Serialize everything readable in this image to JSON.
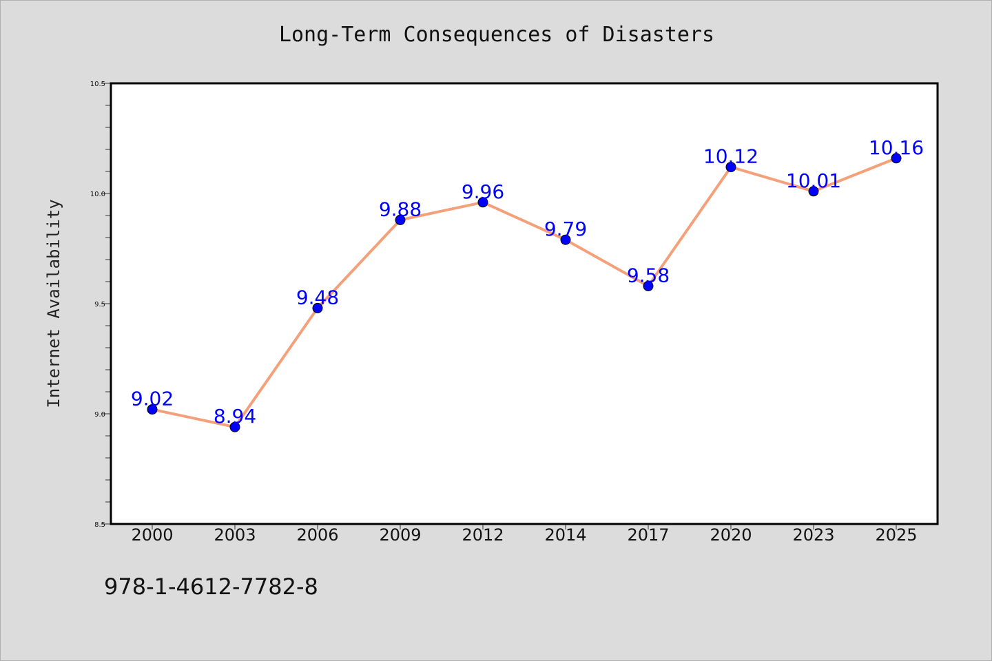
{
  "chart_data": {
    "type": "line",
    "title": "Long-Term Consequences of Disasters",
    "xlabel": "",
    "ylabel": "Internet Availability",
    "categories": [
      "2000",
      "2003",
      "2006",
      "2009",
      "2012",
      "2014",
      "2017",
      "2020",
      "2023",
      "2025"
    ],
    "series": [
      {
        "values": [
          9.02,
          8.94,
          9.48,
          9.88,
          9.96,
          9.79,
          9.58,
          10.12,
          10.01,
          10.16
        ],
        "data_labels": [
          "9.02",
          "8.94",
          "9.48",
          "9.88",
          "9.96",
          "9.79",
          "9.58",
          "10.12",
          "10.01",
          "10.16"
        ]
      }
    ],
    "ylim": [
      8.5,
      10.5
    ],
    "yticks": [
      "8.5",
      "9.0",
      "9.5",
      "10.0",
      "10.5"
    ],
    "grid": false,
    "colors": {
      "line": "#f4a07a",
      "marker": "#0000ff",
      "label": "#0000ff",
      "background": "#dcdcdc",
      "plot_area": "#ffffff"
    }
  },
  "footer_text": "978-1-4612-7782-8"
}
